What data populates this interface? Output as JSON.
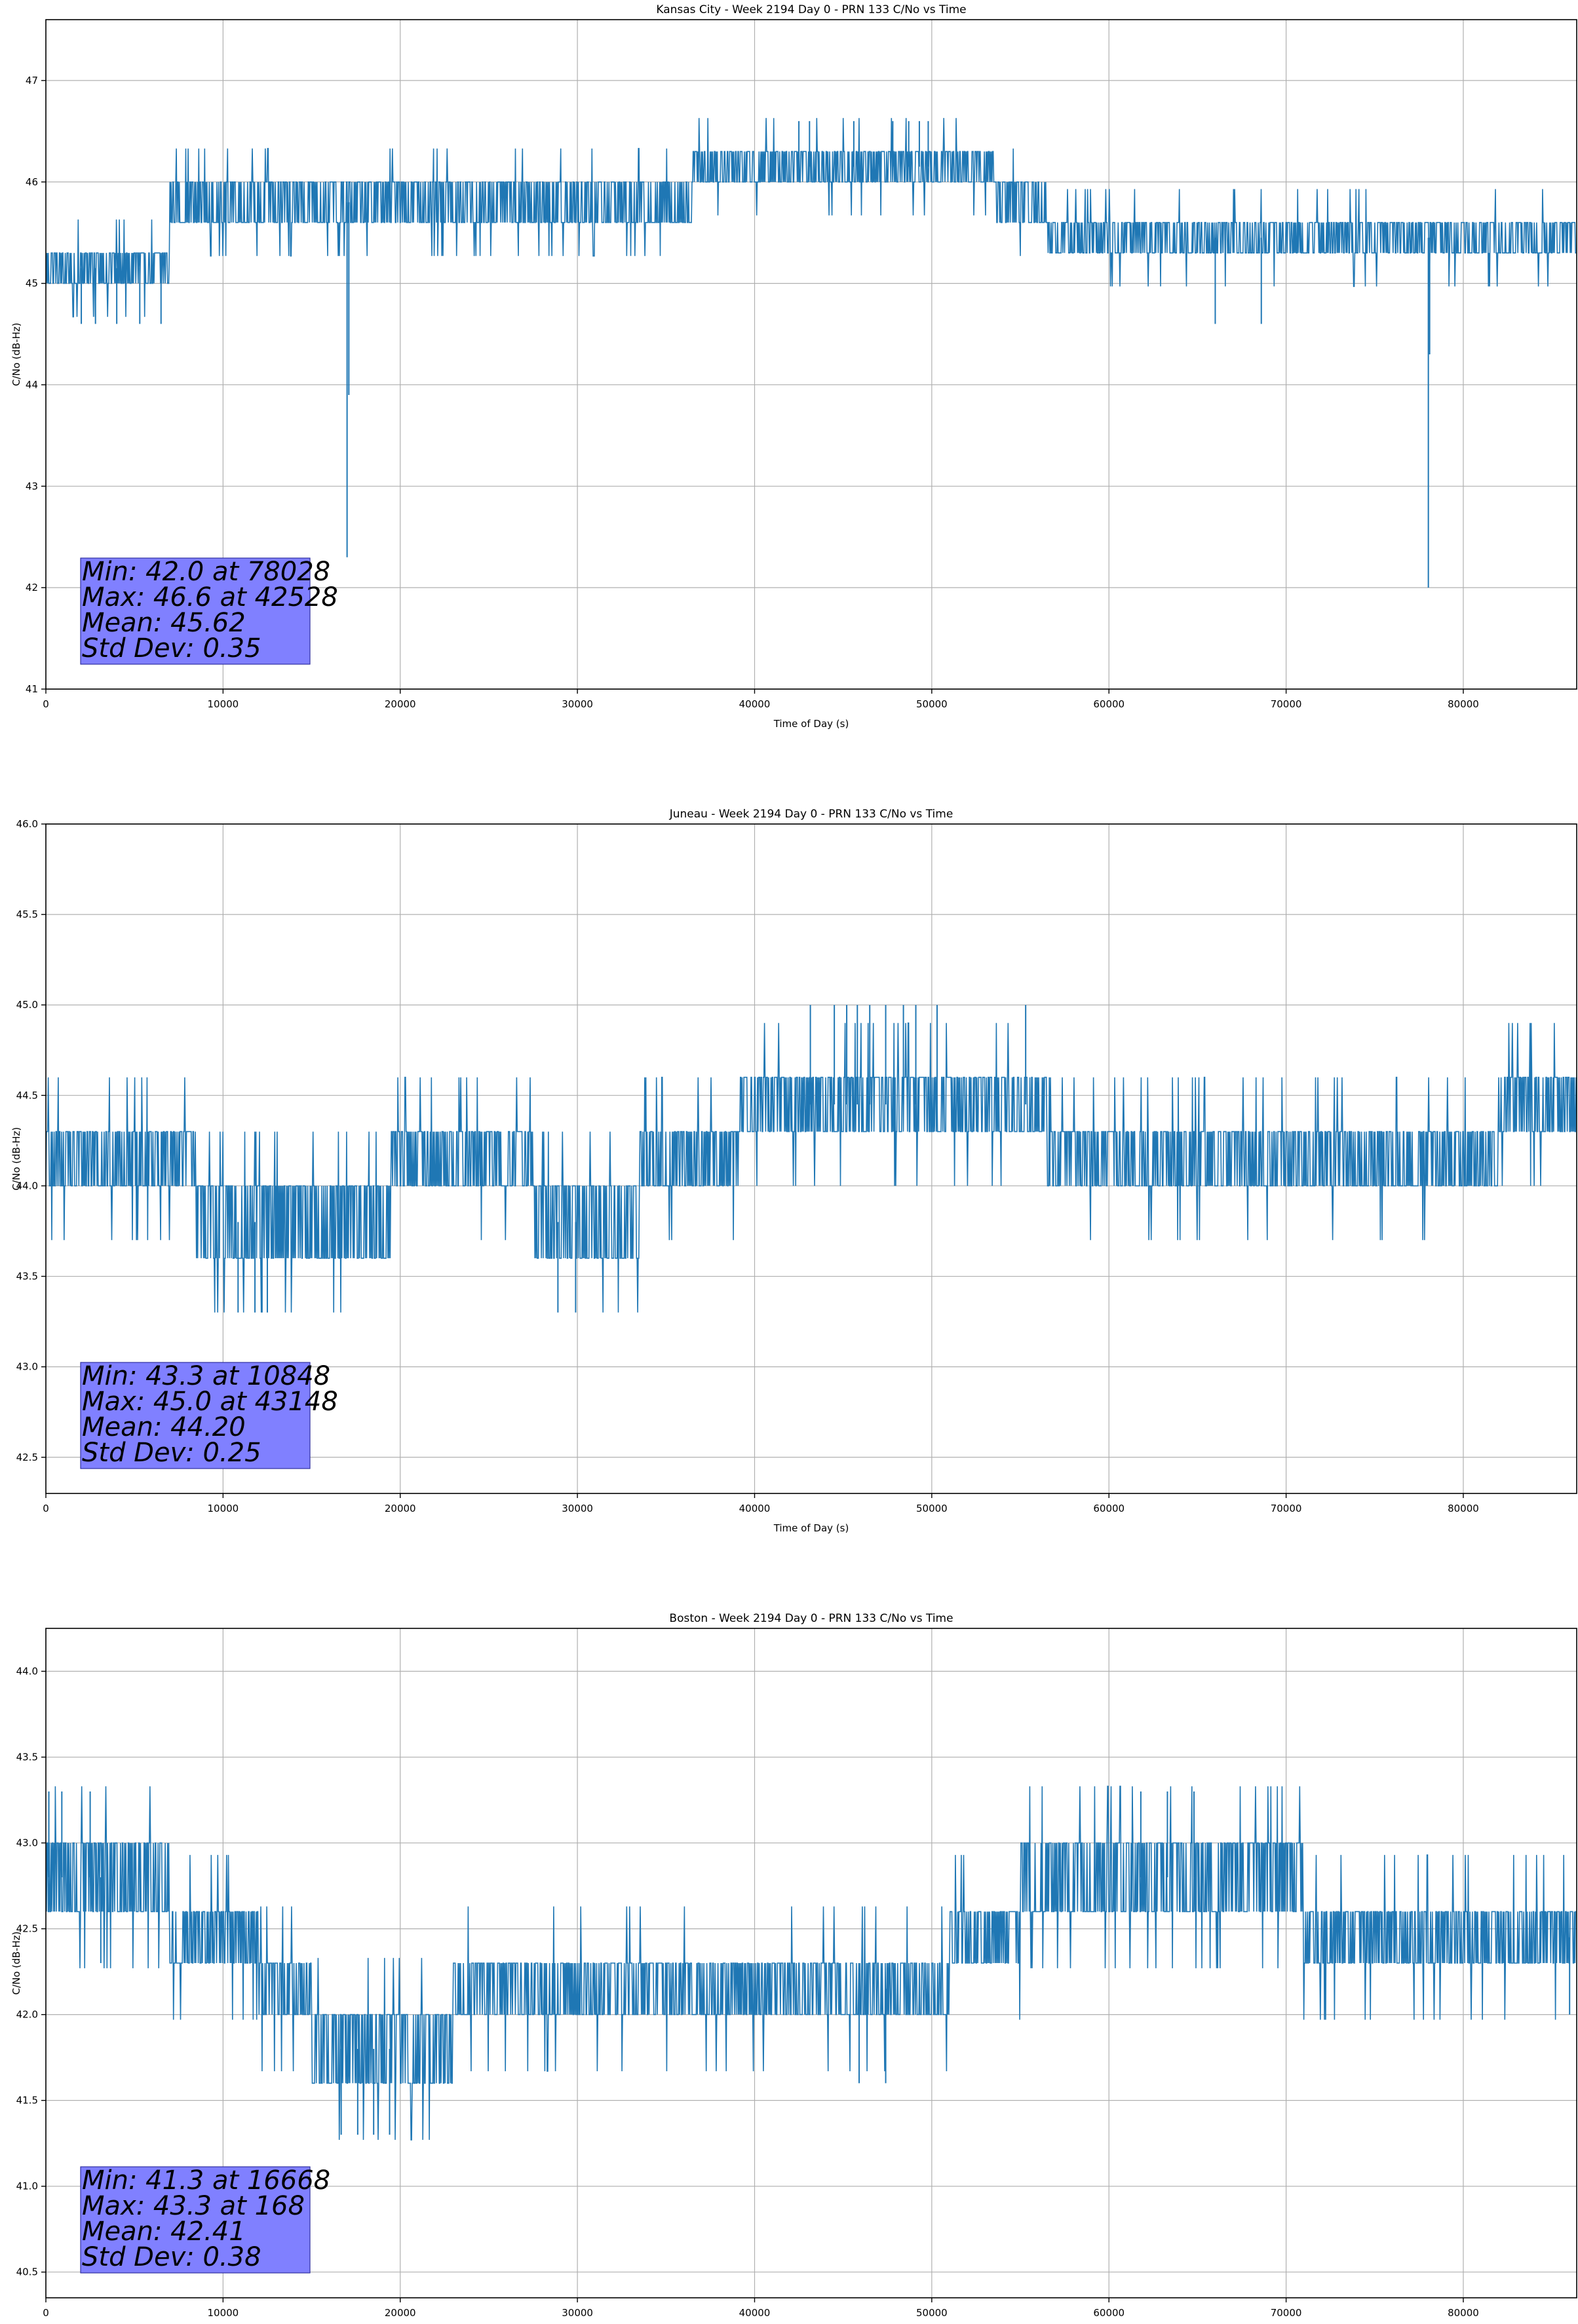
{
  "chart_data": [
    {
      "type": "line",
      "title": "Kansas City - Week 2194 Day 0 - PRN 133 C/No vs Time",
      "xlabel": "Time of Day (s)",
      "ylabel": "C/No (dB-Hz)",
      "xlim": [
        0,
        86400
      ],
      "ylim": [
        41,
        47.6
      ],
      "xticks": [
        0,
        10000,
        20000,
        30000,
        40000,
        50000,
        60000,
        70000,
        80000
      ],
      "yticks": [
        41,
        42,
        43,
        44,
        45,
        46,
        47
      ],
      "ytick_labels": [
        "41",
        "42",
        "43",
        "44",
        "45",
        "46",
        "47"
      ],
      "grid": true,
      "color": "#1f77b4",
      "stats": [
        "Min: 42.0 at 78028",
        "Max: 46.6 at 42528",
        "Mean: 45.62",
        "Std Dev: 0.35"
      ],
      "quantization_step": 0.33,
      "bands": [
        {
          "x": [
            0,
            7000
          ],
          "lo": 45.0,
          "hi": 45.3
        },
        {
          "x": [
            7000,
            36500
          ],
          "lo": 45.6,
          "hi": 46.0
        },
        {
          "x": [
            36500,
            53500
          ],
          "lo": 46.0,
          "hi": 46.3
        },
        {
          "x": [
            53500,
            56500
          ],
          "lo": 45.6,
          "hi": 46.0
        },
        {
          "x": [
            56500,
            86400
          ],
          "lo": 45.3,
          "hi": 45.6
        }
      ],
      "spikes": [
        {
          "x": 2000,
          "v": 44.6
        },
        {
          "x": 2800,
          "v": 44.6
        },
        {
          "x": 4000,
          "v": 44.6
        },
        {
          "x": 5300,
          "v": 44.6
        },
        {
          "x": 6500,
          "v": 44.6
        },
        {
          "x": 17000,
          "v": 42.3
        },
        {
          "x": 17100,
          "v": 43.9
        },
        {
          "x": 42500,
          "v": 46.6
        },
        {
          "x": 43100,
          "v": 46.6
        },
        {
          "x": 45600,
          "v": 46.6
        },
        {
          "x": 47800,
          "v": 46.6
        },
        {
          "x": 48700,
          "v": 46.6
        },
        {
          "x": 49300,
          "v": 46.6
        },
        {
          "x": 49800,
          "v": 46.6
        },
        {
          "x": 66000,
          "v": 44.6
        },
        {
          "x": 68600,
          "v": 44.6
        },
        {
          "x": 78028,
          "v": 42.0
        },
        {
          "x": 78100,
          "v": 44.3
        }
      ]
    },
    {
      "type": "line",
      "title": "Juneau - Week 2194 Day 0 - PRN 133 C/No vs Time",
      "xlabel": "Time of Day (s)",
      "ylabel": "C/No (dB-Hz)",
      "xlim": [
        0,
        86400
      ],
      "ylim": [
        42.3,
        46.0
      ],
      "xticks": [
        0,
        10000,
        20000,
        30000,
        40000,
        50000,
        60000,
        70000,
        80000
      ],
      "yticks": [
        42.5,
        43.0,
        43.5,
        44.0,
        44.5,
        45.0,
        45.5,
        46.0
      ],
      "ytick_labels": [
        "42.5",
        "43.0",
        "43.5",
        "44.0",
        "44.5",
        "45.0",
        "45.5",
        "46.0"
      ],
      "grid": true,
      "color": "#1f77b4",
      "stats": [
        "Min: 43.3 at 10848",
        "Max: 45.0 at 43148",
        "Mean: 44.20",
        "Std Dev: 0.25"
      ],
      "quantization_step": 0.3,
      "bands": [
        {
          "x": [
            0,
            8500
          ],
          "lo": 44.0,
          "hi": 44.3
        },
        {
          "x": [
            8500,
            19500
          ],
          "lo": 43.6,
          "hi": 44.0
        },
        {
          "x": [
            19500,
            27500
          ],
          "lo": 44.0,
          "hi": 44.3
        },
        {
          "x": [
            27500,
            33500
          ],
          "lo": 43.6,
          "hi": 44.0
        },
        {
          "x": [
            33500,
            39000
          ],
          "lo": 44.0,
          "hi": 44.3
        },
        {
          "x": [
            39000,
            56500
          ],
          "lo": 44.3,
          "hi": 44.6
        },
        {
          "x": [
            56500,
            82000
          ],
          "lo": 44.0,
          "hi": 44.3
        },
        {
          "x": [
            82000,
            86400
          ],
          "lo": 44.3,
          "hi": 44.6
        }
      ],
      "spikes": [
        {
          "x": 10848,
          "v": 43.3
        },
        {
          "x": 11800,
          "v": 43.3
        },
        {
          "x": 12200,
          "v": 43.3
        },
        {
          "x": 12500,
          "v": 43.3
        },
        {
          "x": 28900,
          "v": 43.3
        },
        {
          "x": 29900,
          "v": 43.3
        },
        {
          "x": 43148,
          "v": 45.0
        },
        {
          "x": 44500,
          "v": 45.0
        },
        {
          "x": 45200,
          "v": 45.0
        },
        {
          "x": 45800,
          "v": 45.0
        },
        {
          "x": 46500,
          "v": 45.0
        },
        {
          "x": 47400,
          "v": 45.0
        },
        {
          "x": 48400,
          "v": 45.0
        },
        {
          "x": 49100,
          "v": 45.0
        },
        {
          "x": 50300,
          "v": 45.0
        },
        {
          "x": 55300,
          "v": 45.0
        }
      ]
    },
    {
      "type": "line",
      "title": "Boston - Week 2194 Day 0 - PRN 133 C/No vs Time",
      "xlabel": "Time of Day (s)",
      "ylabel": "C/No (dB-Hz)",
      "xlim": [
        0,
        86400
      ],
      "ylim": [
        40.35,
        44.25
      ],
      "xticks": [
        0,
        10000,
        20000,
        30000,
        40000,
        50000,
        60000,
        70000,
        80000
      ],
      "yticks": [
        40.5,
        41.0,
        41.5,
        42.0,
        42.5,
        43.0,
        43.5,
        44.0
      ],
      "ytick_labels": [
        "40.5",
        "41.0",
        "41.5",
        "42.0",
        "42.5",
        "43.0",
        "43.5",
        "44.0"
      ],
      "grid": true,
      "color": "#1f77b4",
      "stats": [
        "Min: 41.3 at 16668",
        "Max: 43.3 at 168",
        "Mean: 42.41",
        "Std Dev: 0.38"
      ],
      "quantization_step": 0.33,
      "bands": [
        {
          "x": [
            0,
            7000
          ],
          "lo": 42.6,
          "hi": 43.0
        },
        {
          "x": [
            7000,
            12000
          ],
          "lo": 42.3,
          "hi": 42.6
        },
        {
          "x": [
            12000,
            15000
          ],
          "lo": 42.0,
          "hi": 42.3
        },
        {
          "x": [
            15000,
            23000
          ],
          "lo": 41.6,
          "hi": 42.0
        },
        {
          "x": [
            23000,
            26000
          ],
          "lo": 42.0,
          "hi": 42.3
        },
        {
          "x": [
            26000,
            51000
          ],
          "lo": 42.0,
          "hi": 42.3
        },
        {
          "x": [
            51000,
            55000
          ],
          "lo": 42.3,
          "hi": 42.6
        },
        {
          "x": [
            55000,
            71000
          ],
          "lo": 42.6,
          "hi": 43.0
        },
        {
          "x": [
            71000,
            86400
          ],
          "lo": 42.3,
          "hi": 42.6
        }
      ],
      "spikes": [
        {
          "x": 168,
          "v": 43.3
        },
        {
          "x": 900,
          "v": 43.3
        },
        {
          "x": 2500,
          "v": 43.3
        },
        {
          "x": 3100,
          "v": 42.3
        },
        {
          "x": 16668,
          "v": 41.3
        },
        {
          "x": 17600,
          "v": 41.3
        },
        {
          "x": 18500,
          "v": 41.3
        },
        {
          "x": 19400,
          "v": 41.3
        },
        {
          "x": 45900,
          "v": 41.6
        },
        {
          "x": 47400,
          "v": 41.6
        },
        {
          "x": 61800,
          "v": 43.3
        },
        {
          "x": 63300,
          "v": 43.3
        },
        {
          "x": 64800,
          "v": 43.3
        },
        {
          "x": 86000,
          "v": 42.0
        }
      ]
    }
  ]
}
